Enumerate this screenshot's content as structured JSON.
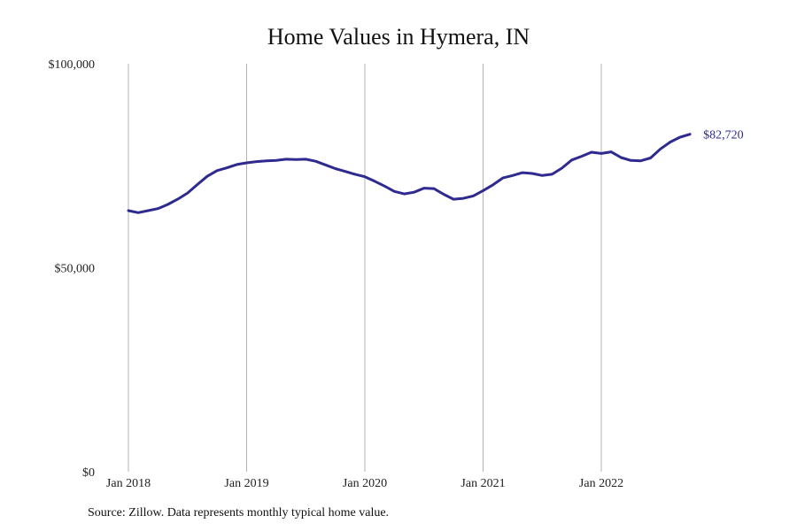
{
  "title": "Home Values in Hymera, IN",
  "source": "Source: Zillow. Data represents monthly typical home value.",
  "colors": {
    "line": "#2e2a8f",
    "grid": "#b3b3b3",
    "text": "#222222"
  },
  "chart_data": {
    "type": "line",
    "title": "Home Values in Hymera, IN",
    "xlabel": "",
    "ylabel": "",
    "ylim": [
      0,
      100000
    ],
    "yticks": [
      0,
      50000,
      100000
    ],
    "ytick_labels": [
      "$0",
      "$50,000",
      "$100,000"
    ],
    "xticks": [
      "2018-01",
      "2019-01",
      "2020-01",
      "2021-01",
      "2022-01"
    ],
    "xtick_labels": [
      "Jan 2018",
      "Jan 2019",
      "Jan 2020",
      "Jan 2021",
      "Jan 2022"
    ],
    "grid": "vertical lines at x ticks",
    "end_label": "$82,720",
    "series": [
      {
        "x": [
          "2018-01",
          "2018-02",
          "2018-03",
          "2018-04",
          "2018-05",
          "2018-06",
          "2018-07",
          "2018-08",
          "2018-09",
          "2018-10",
          "2018-11",
          "2018-12",
          "2019-01",
          "2019-02",
          "2019-03",
          "2019-04",
          "2019-05",
          "2019-06",
          "2019-07",
          "2019-08",
          "2019-09",
          "2019-10",
          "2019-11",
          "2019-12",
          "2020-01",
          "2020-02",
          "2020-03",
          "2020-04",
          "2020-05",
          "2020-06",
          "2020-07",
          "2020-08",
          "2020-09",
          "2020-10",
          "2020-11",
          "2020-12",
          "2021-01",
          "2021-02",
          "2021-03",
          "2021-04",
          "2021-05",
          "2021-06",
          "2021-07",
          "2021-08",
          "2021-09",
          "2021-10",
          "2021-11",
          "2021-12",
          "2022-01",
          "2022-02",
          "2022-03",
          "2022-04",
          "2022-05",
          "2022-06",
          "2022-07",
          "2022-08",
          "2022-09",
          "2022-10"
        ],
        "values": [
          64000,
          63500,
          64000,
          64500,
          65500,
          66800,
          68300,
          70400,
          72400,
          73800,
          74500,
          75300,
          75700,
          76000,
          76200,
          76300,
          76600,
          76500,
          76600,
          76100,
          75200,
          74300,
          73600,
          72900,
          72300,
          71200,
          70000,
          68700,
          68100,
          68500,
          69500,
          69400,
          68000,
          66800,
          67000,
          67600,
          68900,
          70300,
          72000,
          72600,
          73300,
          73100,
          72600,
          72900,
          74400,
          76400,
          77300,
          78300,
          78000,
          78400,
          77000,
          76300,
          76200,
          76900,
          79100,
          80800,
          82000,
          82720
        ]
      }
    ]
  }
}
